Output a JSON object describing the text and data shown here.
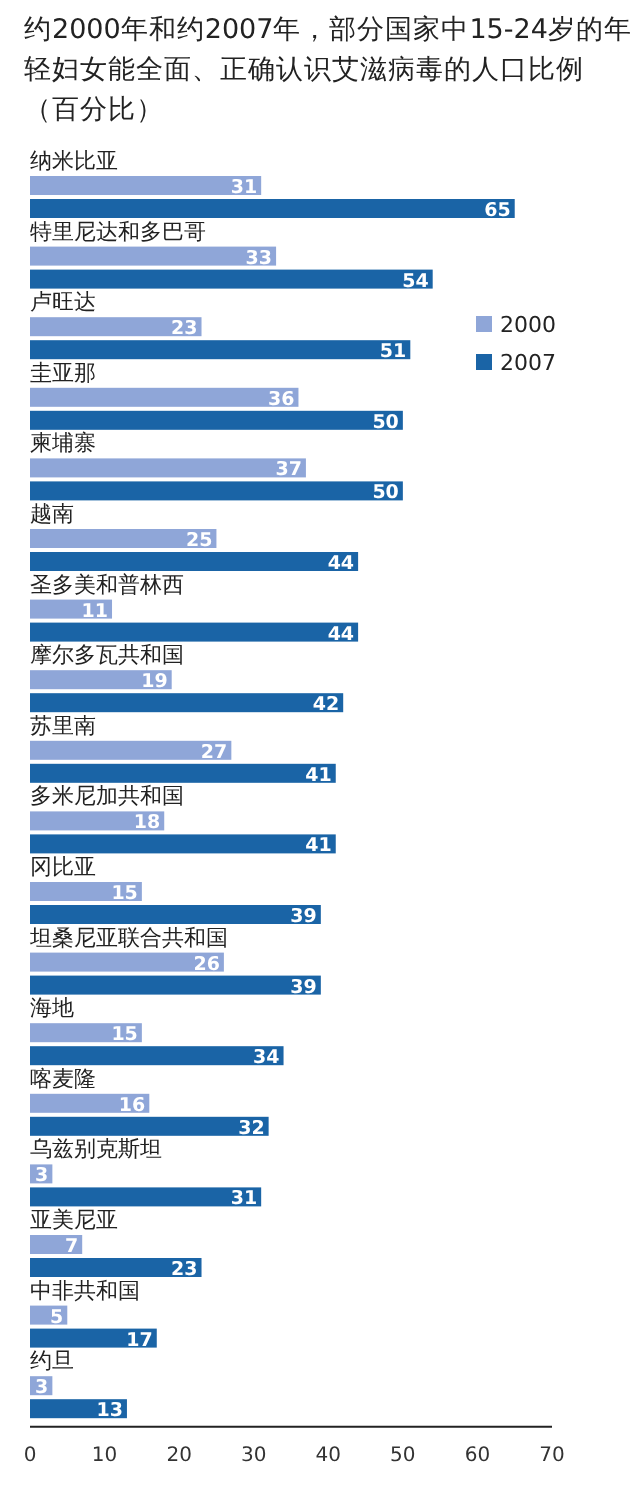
{
  "chart_data": {
    "type": "bar",
    "orientation": "horizontal",
    "title": "约2000年和约2007年，部分国家中15-24岁的年轻妇女能全面、正确认识艾滋病毒的人口比例（百分比）",
    "categories": [
      "纳米比亚",
      "特里尼达和多巴哥",
      "卢旺达",
      "圭亚那",
      "柬埔寨",
      "越南",
      "圣多美和普林西",
      "摩尔多瓦共和国",
      "苏里南",
      "多米尼加共和国",
      "冈比亚",
      "坦桑尼亚联合共和国",
      "海地",
      "喀麦隆",
      "乌兹别克斯坦",
      "亚美尼亚",
      "中非共和国",
      "约旦"
    ],
    "series": [
      {
        "name": "2000",
        "color": "#8fa6d8",
        "values": [
          31,
          33,
          23,
          36,
          37,
          25,
          11,
          19,
          27,
          18,
          15,
          26,
          15,
          16,
          3,
          7,
          5,
          3
        ]
      },
      {
        "name": "2007",
        "color": "#1a64a6",
        "values": [
          65,
          54,
          51,
          50,
          50,
          44,
          44,
          42,
          41,
          41,
          39,
          39,
          34,
          32,
          31,
          23,
          17,
          13
        ]
      }
    ],
    "xlim": [
      0,
      70
    ],
    "xticks": [
      0,
      10,
      20,
      30,
      40,
      50,
      60,
      70
    ],
    "data_labels": true,
    "legend": "right",
    "grid": false
  }
}
